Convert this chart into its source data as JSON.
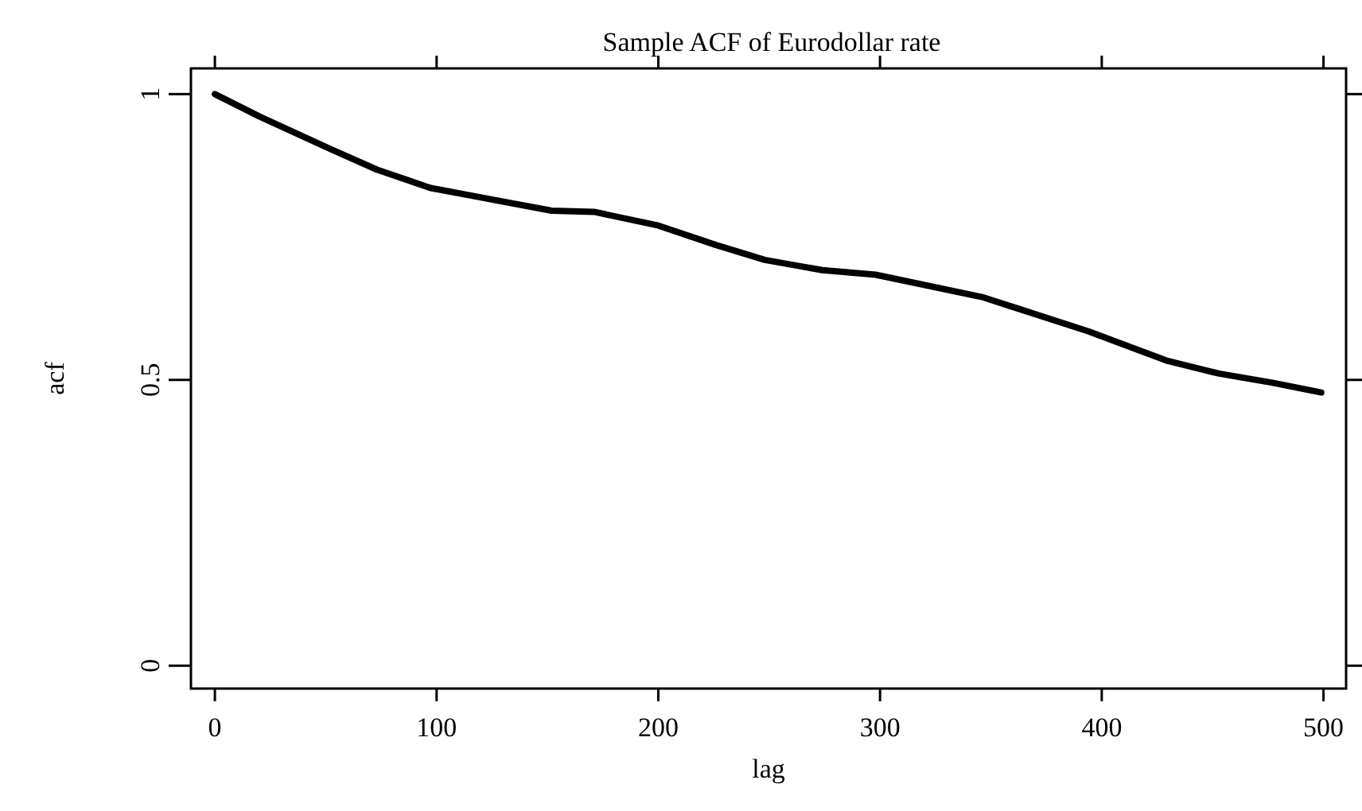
{
  "chart_data": {
    "type": "line",
    "title": "Sample ACF of Eurodollar rate",
    "xlabel": "lag",
    "ylabel": "acf",
    "x": [
      0,
      20,
      51.5,
      73,
      97,
      123,
      152,
      171,
      200,
      226,
      248,
      274,
      298,
      346,
      394,
      429,
      453,
      477,
      499
    ],
    "series": [
      {
        "color": "#000000",
        "values": [
          1,
          0.961,
          0.905,
          0.868,
          0.836,
          0.817,
          0.796,
          0.794,
          0.77,
          0.736,
          0.71,
          0.692,
          0.684,
          0.645,
          0.585,
          0.534,
          0.511,
          0.495,
          0.478
        ]
      }
    ],
    "xlim": [
      -10.8,
      510.2
    ],
    "ylim": [
      -0.04,
      1.045
    ],
    "xticks": [
      0,
      100,
      200,
      300,
      400,
      500
    ],
    "yticks": [
      0,
      0.5,
      1
    ],
    "grid": false,
    "marker": "none",
    "line_style": "solid"
  }
}
